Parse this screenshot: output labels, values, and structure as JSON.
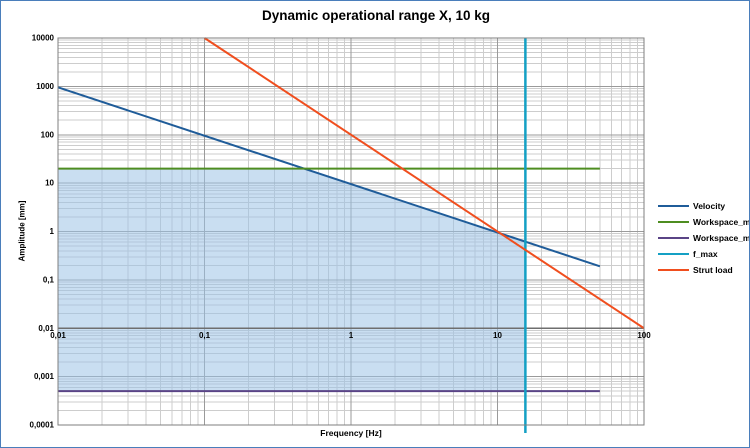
{
  "chart_data": {
    "type": "line",
    "title": "Dynamic operational range X, 10 kg",
    "xlabel": "Frequency [Hz]",
    "ylabel": "Amplitude [mm]",
    "x_scale": "log",
    "y_scale": "log",
    "xlim": [
      0.01,
      100
    ],
    "ylim": [
      0.0001,
      10000
    ],
    "grid": "major and minor logarithmic gridlines on both axes",
    "legend_position": "right",
    "x_axis_cross_y": 0.01,
    "x_ticks": [
      {
        "value": 0.01,
        "label": "0,01"
      },
      {
        "value": 0.1,
        "label": "0,1"
      },
      {
        "value": 1,
        "label": "1"
      },
      {
        "value": 10,
        "label": "10"
      },
      {
        "value": 100,
        "label": "100"
      }
    ],
    "y_ticks": [
      {
        "value": 10000,
        "label": "10000"
      },
      {
        "value": 1000,
        "label": "1000"
      },
      {
        "value": 100,
        "label": "100"
      },
      {
        "value": 10,
        "label": "10"
      },
      {
        "value": 1,
        "label": "1"
      },
      {
        "value": 0.1,
        "label": "0,1"
      },
      {
        "value": 0.01,
        "label": "0,01"
      },
      {
        "value": 0.001,
        "label": "0,001"
      },
      {
        "value": 0.0001,
        "label": "0,0001"
      }
    ],
    "series": [
      {
        "name": "Velocity",
        "color": "#1F5C99",
        "width": 2,
        "points": [
          [
            0.01,
            955
          ],
          [
            50,
            0.191
          ]
        ]
      },
      {
        "name": "Workspace_max",
        "color": "#4E8D20",
        "width": 2,
        "points": [
          [
            0.01,
            20
          ],
          [
            50,
            20
          ]
        ]
      },
      {
        "name": "Workspace_min",
        "color": "#5A4486",
        "width": 2,
        "points": [
          [
            0.01,
            0.0005
          ],
          [
            50,
            0.0005
          ]
        ]
      },
      {
        "name": "f_max",
        "color": "#14A0C4",
        "width": 2.5,
        "points": [
          [
            15.5,
            10000
          ],
          [
            15.5,
            0.0001
          ]
        ]
      },
      {
        "name": "Strut load",
        "color": "#F04E1E",
        "width": 2,
        "points": [
          [
            0.1,
            10000
          ],
          [
            100,
            0.01
          ]
        ]
      }
    ],
    "shaded_region": {
      "name": "operational-range",
      "color": "#9DC3E6",
      "opacity": 0.55,
      "points": [
        [
          0.01,
          0.0005
        ],
        [
          0.01,
          20
        ],
        [
          0.4775,
          20
        ],
        [
          15.5,
          0.616
        ],
        [
          15.5,
          0.0005
        ]
      ]
    },
    "colors": {
      "grid_minor": "#CDCDCD",
      "grid_major": "#9A9A9A",
      "plot_border": "#7F7F7F",
      "x_axis_line": "#6E6E6E",
      "figure_border": "#4A7EBB"
    }
  }
}
